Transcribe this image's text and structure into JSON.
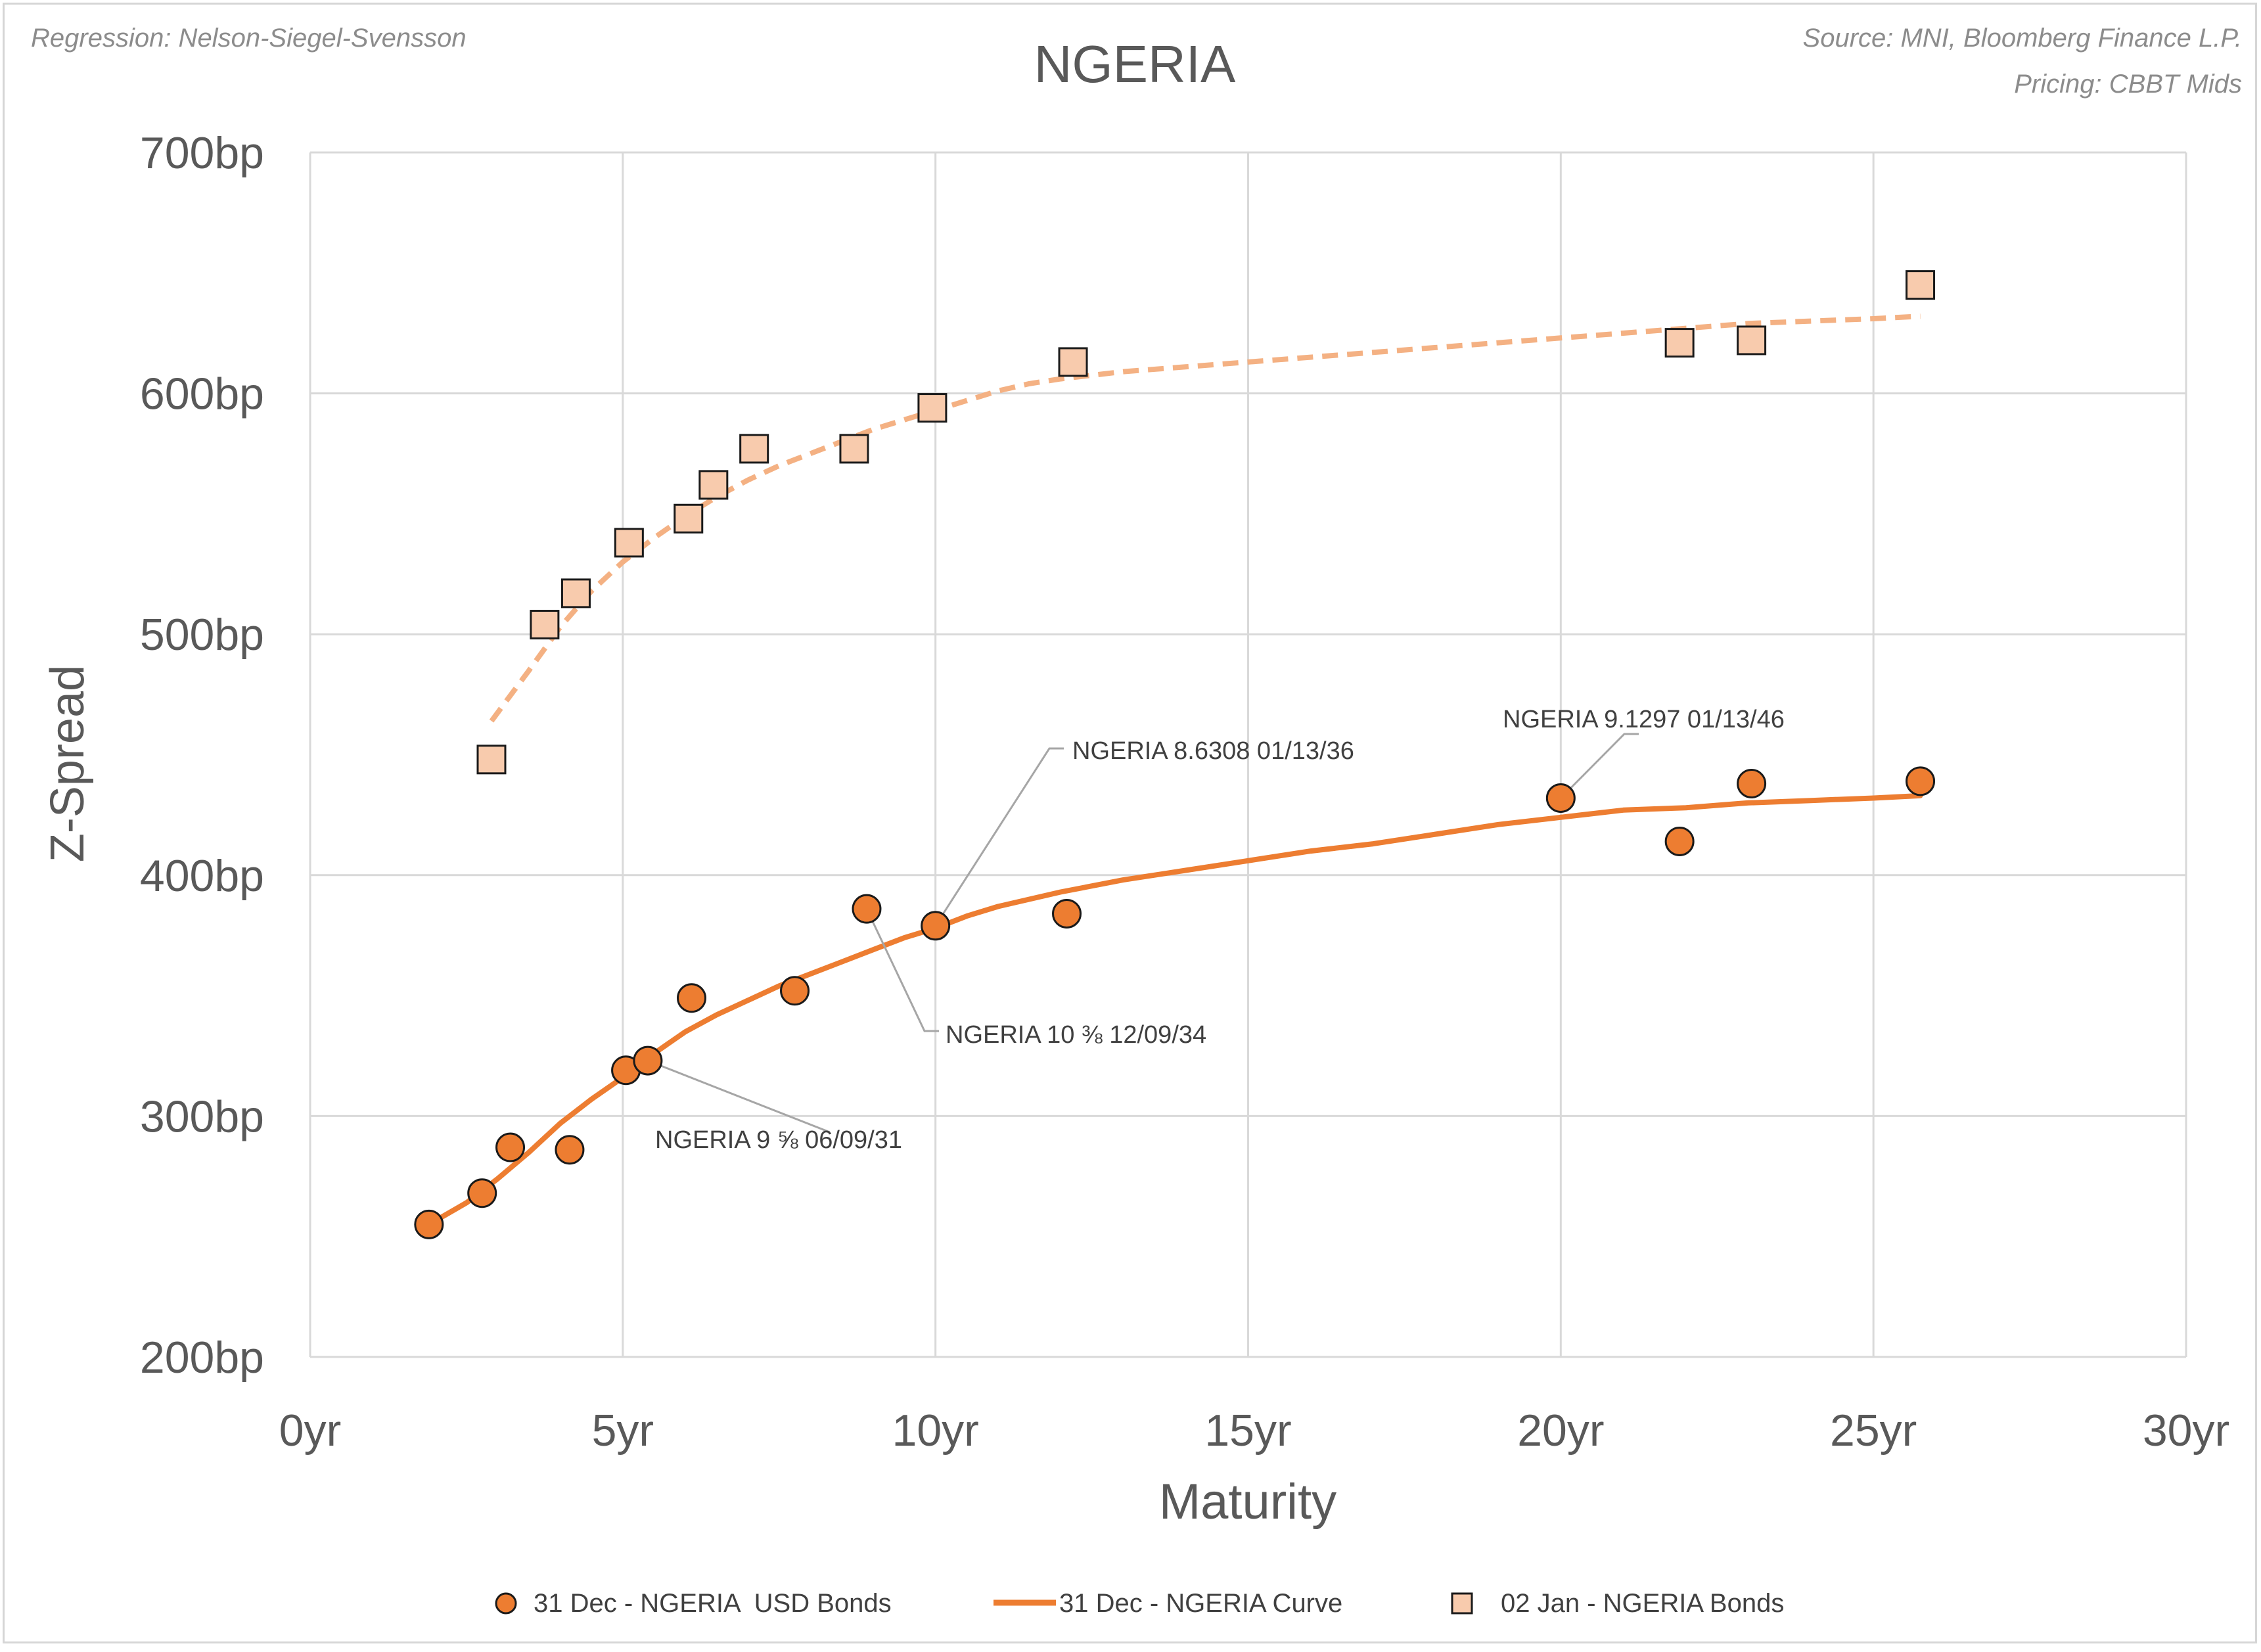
{
  "meta": {
    "regression_note": "Regression: Nelson-Siegel-Svensson",
    "source_note": "Source: MNI, Bloomberg Finance L.P.",
    "pricing_note": "Pricing: CBBT Mids"
  },
  "colors": {
    "bond_fill": "#ed7d31",
    "curve": "#ed7d31",
    "jan_fill": "#f8cbad",
    "jan_curve": "#f4b183",
    "grid": "#d9d9d9",
    "marker_stroke": "#1a1a1a"
  },
  "chart_data": {
    "type": "scatter",
    "title": "NGERIA",
    "xlabel": "Maturity",
    "ylabel": "Z-Spread",
    "xlim": [
      0,
      30
    ],
    "ylim": [
      200,
      700
    ],
    "x_ticks": [
      0,
      5,
      10,
      15,
      20,
      25,
      30
    ],
    "x_tick_labels": [
      "0yr",
      "5yr",
      "10yr",
      "15yr",
      "20yr",
      "25yr",
      "30yr"
    ],
    "y_ticks": [
      200,
      300,
      400,
      500,
      600,
      700
    ],
    "y_tick_labels": [
      "200bp",
      "300bp",
      "400bp",
      "500bp",
      "600bp",
      "700bp"
    ],
    "grid": true,
    "legend_position": "bottom",
    "series": [
      {
        "name": "31 Dec - NGERIA  USD Bonds",
        "kind": "markers-circle",
        "points": [
          [
            1.9,
            255
          ],
          [
            2.75,
            268
          ],
          [
            3.2,
            287
          ],
          [
            4.15,
            286
          ],
          [
            5.05,
            319
          ],
          [
            5.4,
            323
          ],
          [
            6.1,
            349
          ],
          [
            7.75,
            352
          ],
          [
            8.9,
            386
          ],
          [
            10.0,
            379
          ],
          [
            12.1,
            384
          ],
          [
            20.0,
            432
          ],
          [
            21.9,
            414
          ],
          [
            23.05,
            438
          ],
          [
            25.75,
            439
          ]
        ]
      },
      {
        "name": "31 Dec - NGERIA Curve",
        "kind": "line-solid",
        "points": [
          [
            1.9,
            255
          ],
          [
            2.5,
            264
          ],
          [
            3.0,
            274
          ],
          [
            3.5,
            285
          ],
          [
            4.0,
            297
          ],
          [
            4.5,
            307
          ],
          [
            5.0,
            316
          ],
          [
            5.5,
            326
          ],
          [
            6.0,
            335
          ],
          [
            6.5,
            342
          ],
          [
            7.0,
            348
          ],
          [
            7.5,
            354
          ],
          [
            8.0,
            359
          ],
          [
            8.5,
            364
          ],
          [
            9.0,
            369
          ],
          [
            9.5,
            374
          ],
          [
            10.0,
            378
          ],
          [
            10.5,
            383
          ],
          [
            11.0,
            387
          ],
          [
            11.5,
            390
          ],
          [
            12.0,
            393
          ],
          [
            13.0,
            398
          ],
          [
            14.0,
            402
          ],
          [
            15.0,
            406
          ],
          [
            16.0,
            410
          ],
          [
            17.0,
            413
          ],
          [
            18.0,
            417
          ],
          [
            19.0,
            421
          ],
          [
            20.0,
            424
          ],
          [
            21.0,
            427
          ],
          [
            22.0,
            428
          ],
          [
            23.0,
            430
          ],
          [
            24.0,
            431
          ],
          [
            25.0,
            432
          ],
          [
            25.75,
            433
          ]
        ]
      },
      {
        "name": "02 Jan - NGERIA Bonds",
        "kind": "markers-square",
        "points": [
          [
            2.9,
            448
          ],
          [
            3.75,
            504
          ],
          [
            4.25,
            517
          ],
          [
            5.1,
            538
          ],
          [
            6.05,
            548
          ],
          [
            6.45,
            562
          ],
          [
            7.1,
            577
          ],
          [
            8.7,
            577
          ],
          [
            9.95,
            594
          ],
          [
            12.2,
            613
          ],
          [
            21.9,
            621
          ],
          [
            23.05,
            622
          ],
          [
            25.75,
            645
          ]
        ]
      },
      {
        "name": "02 Jan - NGERIA Curve",
        "kind": "line-dashed",
        "show_in_legend": false,
        "points": [
          [
            2.9,
            464
          ],
          [
            3.5,
            485
          ],
          [
            4.0,
            503
          ],
          [
            4.5,
            518
          ],
          [
            5.0,
            530
          ],
          [
            5.5,
            540
          ],
          [
            6.0,
            549
          ],
          [
            6.5,
            557
          ],
          [
            7.0,
            564
          ],
          [
            7.5,
            570
          ],
          [
            8.0,
            575
          ],
          [
            8.5,
            580
          ],
          [
            9.0,
            585
          ],
          [
            9.5,
            589
          ],
          [
            10.0,
            593
          ],
          [
            10.5,
            597
          ],
          [
            11.0,
            601
          ],
          [
            11.5,
            604
          ],
          [
            12.0,
            606
          ],
          [
            13.0,
            609
          ],
          [
            14.0,
            611
          ],
          [
            15.0,
            613
          ],
          [
            16.0,
            615
          ],
          [
            17.0,
            617
          ],
          [
            18.0,
            619
          ],
          [
            19.0,
            621
          ],
          [
            20.0,
            623
          ],
          [
            21.0,
            625
          ],
          [
            22.0,
            627
          ],
          [
            23.0,
            629
          ],
          [
            24.0,
            630
          ],
          [
            25.0,
            631
          ],
          [
            25.75,
            632
          ]
        ]
      }
    ],
    "annotations": [
      {
        "text": "NGERIA 8.6308 01/13/36",
        "target": [
          10.0,
          379
        ]
      },
      {
        "text": "NGERIA 9.1297 01/13/46",
        "target": [
          20.0,
          432
        ]
      },
      {
        "text": "NGERIA 10 ⅜ 12/09/34",
        "target": [
          8.9,
          386
        ]
      },
      {
        "text": "NGERIA 9 ⅝ 06/09/31",
        "target": [
          5.4,
          323
        ]
      }
    ]
  }
}
